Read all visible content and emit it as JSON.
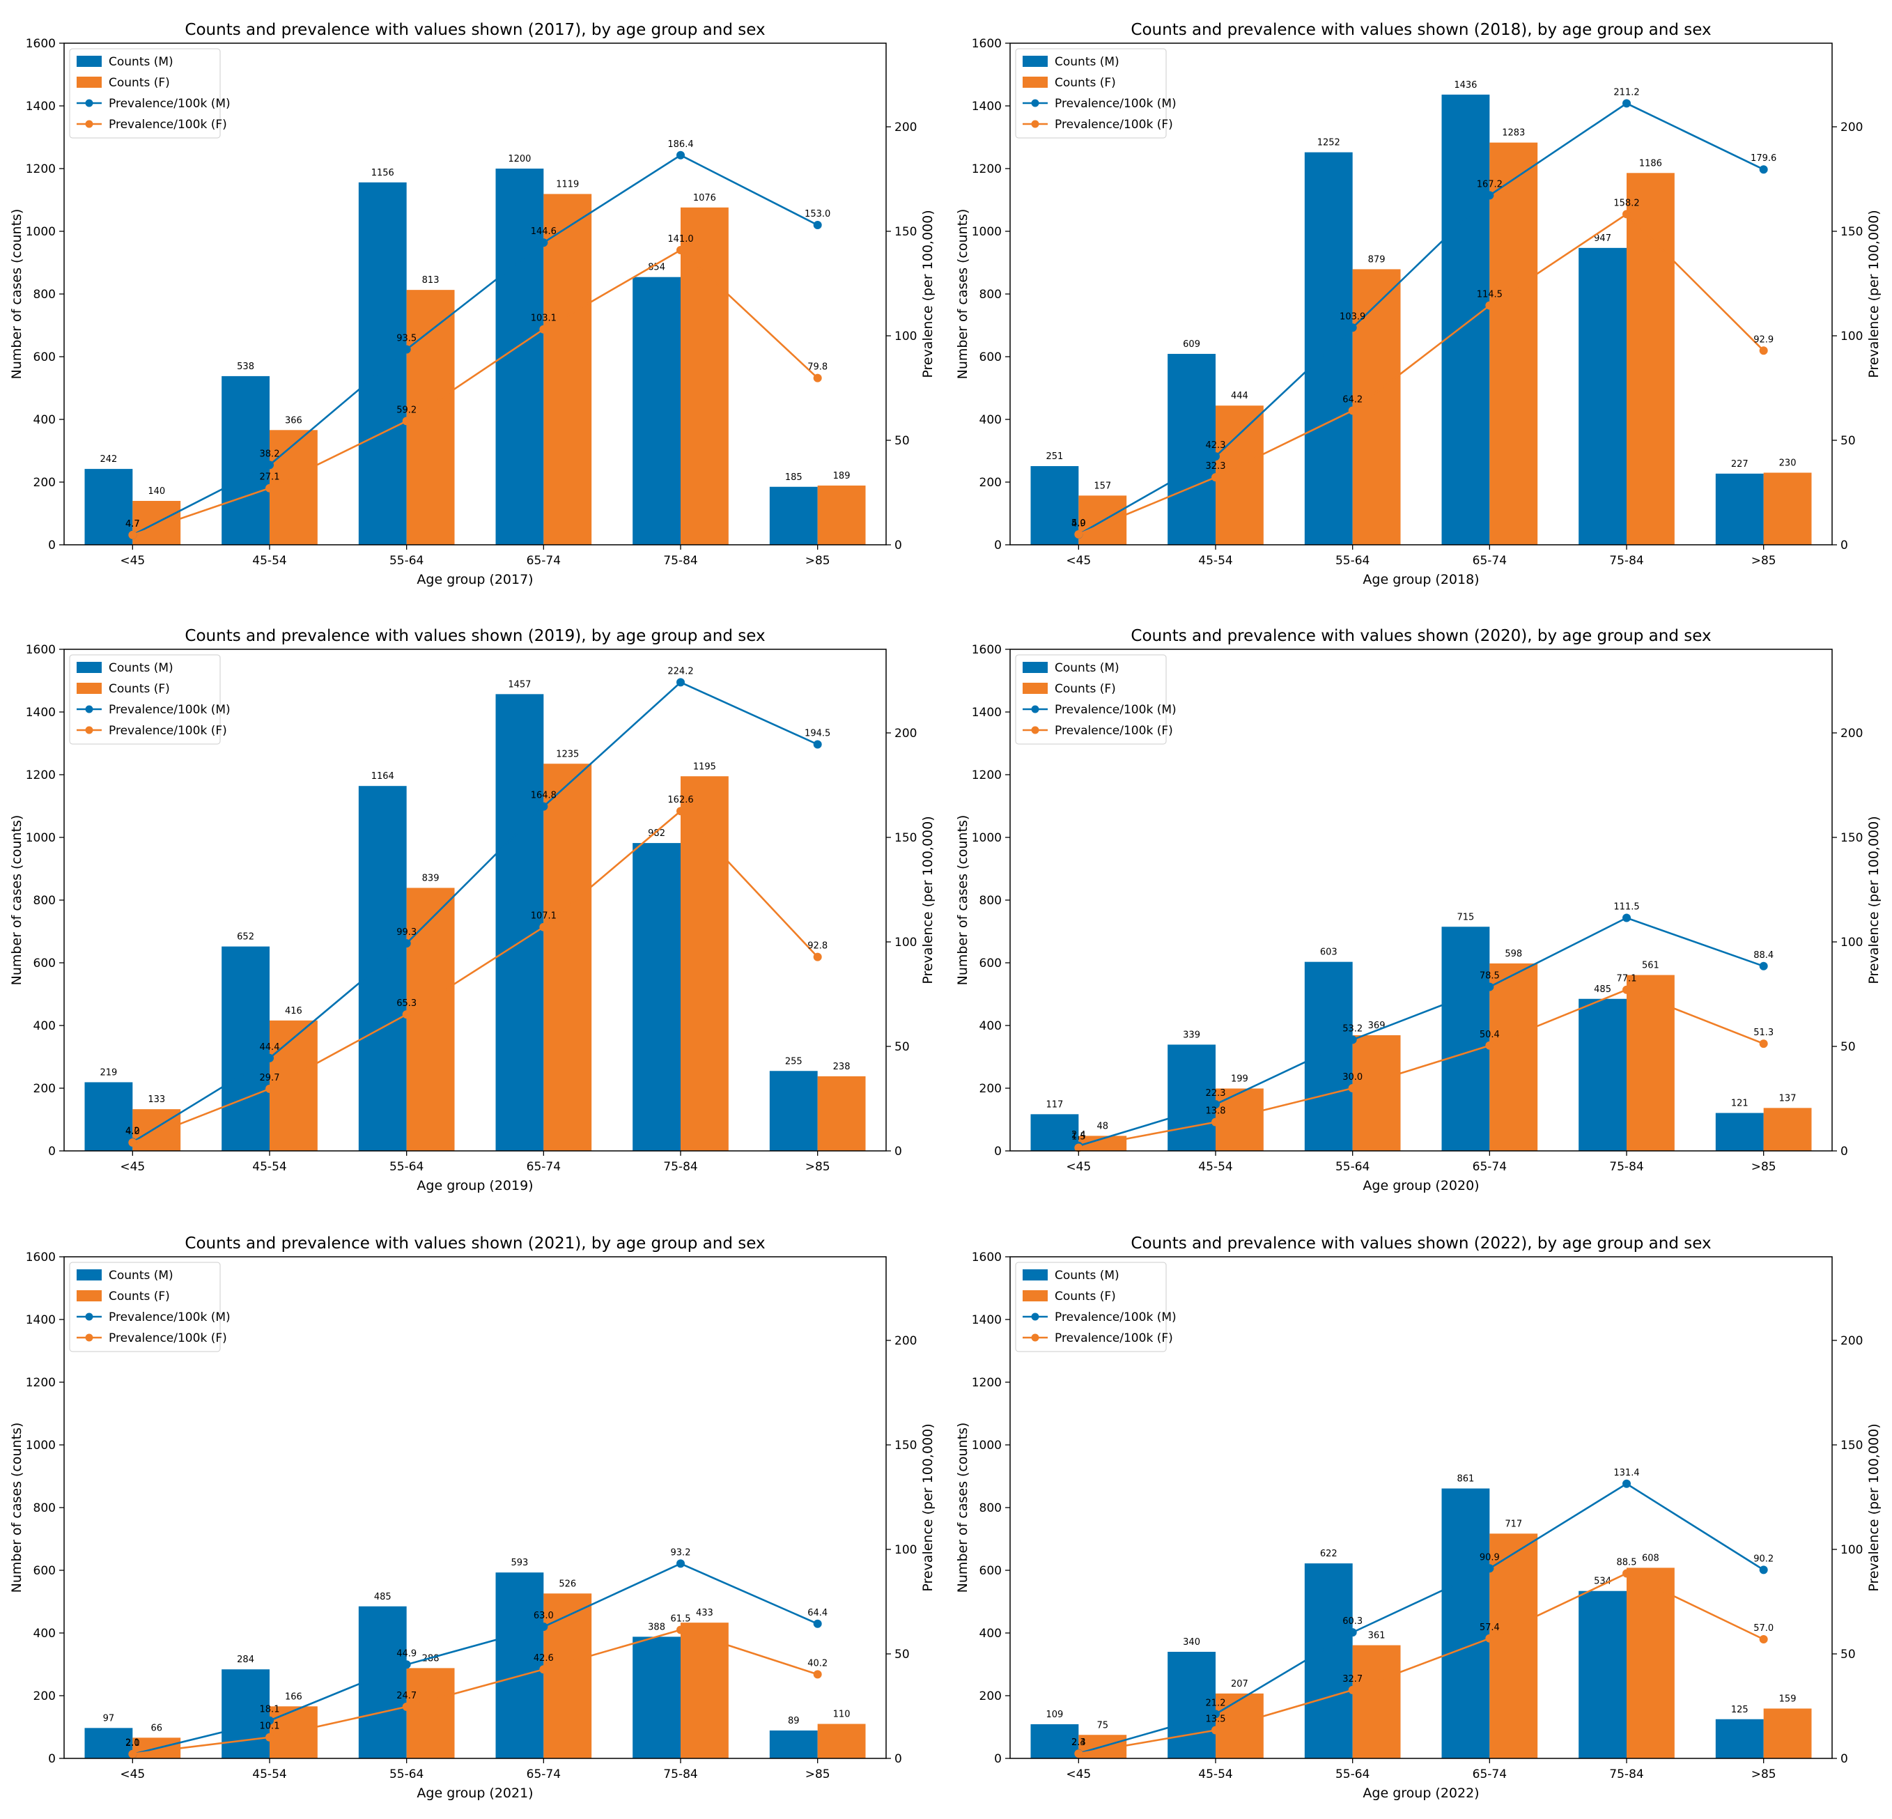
{
  "colors": {
    "male": "#0072B2",
    "female": "#F07E26"
  },
  "chart_data": [
    {
      "type": "bar",
      "title": "Counts and prevalence with values shown (2017), by age group and sex",
      "xlabel": "Age group (2017)",
      "ylabel": "Number of cases (counts)",
      "y2label": "Prevalence (per 100,000)",
      "ylim": [
        0,
        1600
      ],
      "y2lim": [
        0,
        240
      ],
      "yticks": [
        "0",
        "200",
        "400",
        "600",
        "800",
        "1000",
        "1200",
        "1400",
        "1600"
      ],
      "y2ticks": [
        "0",
        "50",
        "100",
        "150",
        "200"
      ],
      "legend_position": "upper-left",
      "categories": [
        "<45",
        "45-54",
        "55-64",
        "65-74",
        "75-84",
        ">85"
      ],
      "series": [
        {
          "name": "Counts (M)",
          "kind": "bar",
          "values": [
            242,
            538,
            1156,
            1200,
            854,
            185
          ],
          "labels": [
            "242",
            "538",
            "1156",
            "1200",
            "854",
            "185"
          ]
        },
        {
          "name": "Counts (F)",
          "kind": "bar",
          "values": [
            140,
            366,
            813,
            1119,
            1076,
            189
          ],
          "labels": [
            "140",
            "366",
            "813",
            "1119",
            "1076",
            "189"
          ]
        },
        {
          "name": "Prevalence/100k (M)",
          "kind": "line",
          "axis": "right",
          "values": [
            4.7,
            38.2,
            93.5,
            144.6,
            186.4,
            153.0
          ],
          "labels": [
            "4.7",
            "38.2",
            "93.5",
            "144.6",
            "186.4",
            "153.0"
          ]
        },
        {
          "name": "Prevalence/100k (F)",
          "kind": "line",
          "axis": "right",
          "values": [
            4.7,
            27.1,
            59.2,
            103.1,
            141.0,
            79.8
          ],
          "labels": [
            "4.7",
            "27.1",
            "59.2",
            "103.1",
            "141.0",
            "79.8"
          ]
        }
      ]
    },
    {
      "type": "bar",
      "title": "Counts and prevalence with values shown (2018), by age group and sex",
      "xlabel": "Age group (2018)",
      "ylabel": "Number of cases (counts)",
      "y2label": "Prevalence (per 100,000)",
      "ylim": [
        0,
        1600
      ],
      "y2lim": [
        0,
        240
      ],
      "yticks": [
        "0",
        "200",
        "400",
        "600",
        "800",
        "1000",
        "1200",
        "1400",
        "1600"
      ],
      "y2ticks": [
        "0",
        "50",
        "100",
        "150",
        "200"
      ],
      "legend_position": "upper-left",
      "categories": [
        "<45",
        "45-54",
        "55-64",
        "65-74",
        "75-84",
        ">85"
      ],
      "series": [
        {
          "name": "Counts (M)",
          "kind": "bar",
          "values": [
            251,
            609,
            1252,
            1436,
            947,
            227
          ],
          "labels": [
            "251",
            "609",
            "1252",
            "1436",
            "947",
            "227"
          ]
        },
        {
          "name": "Counts (F)",
          "kind": "bar",
          "values": [
            157,
            444,
            879,
            1283,
            1186,
            230
          ],
          "labels": [
            "157",
            "444",
            "879",
            "1283",
            "1186",
            "230"
          ]
        },
        {
          "name": "Prevalence/100k (M)",
          "kind": "line",
          "axis": "right",
          "values": [
            4.9,
            42.3,
            103.9,
            167.2,
            211.2,
            179.6
          ],
          "labels": [
            "4.9",
            "42.3",
            "103.9",
            "167.2",
            "211.2",
            "179.6"
          ]
        },
        {
          "name": "Prevalence/100k (F)",
          "kind": "line",
          "axis": "right",
          "values": [
            5.0,
            32.3,
            64.2,
            114.5,
            158.2,
            92.9
          ],
          "labels": [
            "5.0",
            "32.3",
            "64.2",
            "114.5",
            "158.2",
            "92.9"
          ]
        }
      ]
    },
    {
      "type": "bar",
      "title": "Counts and prevalence with values shown (2019), by age group and sex",
      "xlabel": "Age group (2019)",
      "ylabel": "Number of cases (counts)",
      "y2label": "Prevalence (per 100,000)",
      "ylim": [
        0,
        1600
      ],
      "y2lim": [
        0,
        240
      ],
      "yticks": [
        "0",
        "200",
        "400",
        "600",
        "800",
        "1000",
        "1200",
        "1400",
        "1600"
      ],
      "y2ticks": [
        "0",
        "50",
        "100",
        "150",
        "200"
      ],
      "legend_position": "upper-left",
      "categories": [
        "<45",
        "45-54",
        "55-64",
        "65-74",
        "75-84",
        ">85"
      ],
      "series": [
        {
          "name": "Counts (M)",
          "kind": "bar",
          "values": [
            219,
            652,
            1164,
            1457,
            982,
            255
          ],
          "labels": [
            "219",
            "652",
            "1164",
            "1457",
            "982",
            "255"
          ]
        },
        {
          "name": "Counts (F)",
          "kind": "bar",
          "values": [
            133,
            416,
            839,
            1235,
            1195,
            238
          ],
          "labels": [
            "133",
            "416",
            "839",
            "1235",
            "1195",
            "238"
          ]
        },
        {
          "name": "Prevalence/100k (M)",
          "kind": "line",
          "axis": "right",
          "values": [
            4.2,
            44.4,
            99.3,
            164.8,
            224.2,
            194.5
          ],
          "labels": [
            "4.2",
            "44.4",
            "99.3",
            "164.8",
            "224.2",
            "194.5"
          ]
        },
        {
          "name": "Prevalence/100k (F)",
          "kind": "line",
          "axis": "right",
          "values": [
            4.0,
            29.7,
            65.3,
            107.1,
            162.6,
            92.8
          ],
          "labels": [
            "4.0",
            "29.7",
            "65.3",
            "107.1",
            "162.6",
            "92.8"
          ]
        }
      ]
    },
    {
      "type": "bar",
      "title": "Counts and prevalence with values shown (2020), by age group and sex",
      "xlabel": "Age group (2020)",
      "ylabel": "Number of cases (counts)",
      "y2label": "Prevalence (per 100,000)",
      "ylim": [
        0,
        1600
      ],
      "y2lim": [
        0,
        240
      ],
      "yticks": [
        "0",
        "200",
        "400",
        "600",
        "800",
        "1000",
        "1200",
        "1400",
        "1600"
      ],
      "y2ticks": [
        "0",
        "50",
        "100",
        "150",
        "200"
      ],
      "legend_position": "upper-left",
      "categories": [
        "<45",
        "45-54",
        "55-64",
        "65-74",
        "75-84",
        ">85"
      ],
      "series": [
        {
          "name": "Counts (M)",
          "kind": "bar",
          "values": [
            117,
            339,
            603,
            715,
            485,
            121
          ],
          "labels": [
            "117",
            "339",
            "603",
            "715",
            "485",
            "121"
          ]
        },
        {
          "name": "Counts (F)",
          "kind": "bar",
          "values": [
            48,
            199,
            369,
            598,
            561,
            137
          ],
          "labels": [
            "48",
            "199",
            "369",
            "598",
            "561",
            "137"
          ]
        },
        {
          "name": "Prevalence/100k (M)",
          "kind": "line",
          "axis": "right",
          "values": [
            2.4,
            22.3,
            53.2,
            78.5,
            111.5,
            88.4
          ],
          "labels": [
            "2.4",
            "22.3",
            "53.2",
            "78.5",
            "111.5",
            "88.4"
          ]
        },
        {
          "name": "Prevalence/100k (F)",
          "kind": "line",
          "axis": "right",
          "values": [
            1.5,
            13.8,
            30.0,
            50.4,
            77.1,
            51.3
          ],
          "labels": [
            "1.5",
            "13.8",
            "30.0",
            "50.4",
            "77.1",
            "51.3"
          ]
        }
      ]
    },
    {
      "type": "bar",
      "title": "Counts and prevalence with values shown (2021), by age group and sex",
      "xlabel": "Age group (2021)",
      "ylabel": "Number of cases (counts)",
      "y2label": "Prevalence (per 100,000)",
      "ylim": [
        0,
        1600
      ],
      "y2lim": [
        0,
        240
      ],
      "yticks": [
        "0",
        "200",
        "400",
        "600",
        "800",
        "1000",
        "1200",
        "1400",
        "1600"
      ],
      "y2ticks": [
        "0",
        "50",
        "100",
        "150",
        "200"
      ],
      "legend_position": "upper-left",
      "categories": [
        "<45",
        "45-54",
        "55-64",
        "65-74",
        "75-84",
        ">85"
      ],
      "series": [
        {
          "name": "Counts (M)",
          "kind": "bar",
          "values": [
            97,
            284,
            485,
            593,
            388,
            89
          ],
          "labels": [
            "97",
            "284",
            "485",
            "593",
            "388",
            "89"
          ]
        },
        {
          "name": "Counts (F)",
          "kind": "bar",
          "values": [
            66,
            166,
            288,
            526,
            433,
            110
          ],
          "labels": [
            "66",
            "166",
            "288",
            "526",
            "433",
            "110"
          ]
        },
        {
          "name": "Prevalence/100k (M)",
          "kind": "line",
          "axis": "right",
          "values": [
            2.0,
            18.1,
            44.9,
            63.0,
            93.2,
            64.4
          ],
          "labels": [
            "2.0",
            "18.1",
            "44.9",
            "63.0",
            "93.2",
            "64.4"
          ]
        },
        {
          "name": "Prevalence/100k (F)",
          "kind": "line",
          "axis": "right",
          "values": [
            2.1,
            10.1,
            24.7,
            42.6,
            61.5,
            40.2
          ],
          "labels": [
            "2.1",
            "10.1",
            "24.7",
            "42.6",
            "61.5",
            "40.2"
          ]
        }
      ]
    },
    {
      "type": "bar",
      "title": "Counts and prevalence with values shown (2022), by age group and sex",
      "xlabel": "Age group (2022)",
      "ylabel": "Number of cases (counts)",
      "y2label": "Prevalence (per 100,000)",
      "ylim": [
        0,
        1600
      ],
      "y2lim": [
        0,
        240
      ],
      "yticks": [
        "0",
        "200",
        "400",
        "600",
        "800",
        "1000",
        "1200",
        "1400",
        "1600"
      ],
      "y2ticks": [
        "0",
        "50",
        "100",
        "150",
        "200"
      ],
      "legend_position": "upper-left",
      "categories": [
        "<45",
        "45-54",
        "55-64",
        "65-74",
        "75-84",
        ">85"
      ],
      "series": [
        {
          "name": "Counts (M)",
          "kind": "bar",
          "values": [
            109,
            340,
            622,
            861,
            534,
            125
          ],
          "labels": [
            "109",
            "340",
            "622",
            "861",
            "534",
            "125"
          ]
        },
        {
          "name": "Counts (F)",
          "kind": "bar",
          "values": [
            75,
            207,
            361,
            717,
            608,
            159
          ],
          "labels": [
            "75",
            "207",
            "361",
            "717",
            "608",
            "159"
          ]
        },
        {
          "name": "Prevalence/100k (M)",
          "kind": "line",
          "axis": "right",
          "values": [
            2.4,
            21.2,
            60.3,
            90.9,
            131.4,
            90.2
          ],
          "labels": [
            "2.4",
            "21.2",
            "60.3",
            "90.9",
            "131.4",
            "90.2"
          ]
        },
        {
          "name": "Prevalence/100k (F)",
          "kind": "line",
          "axis": "right",
          "values": [
            2.3,
            13.5,
            32.7,
            57.4,
            88.5,
            57.0
          ],
          "labels": [
            "2.3",
            "13.5",
            "32.7",
            "57.4",
            "88.5",
            "57.0"
          ]
        }
      ]
    }
  ]
}
